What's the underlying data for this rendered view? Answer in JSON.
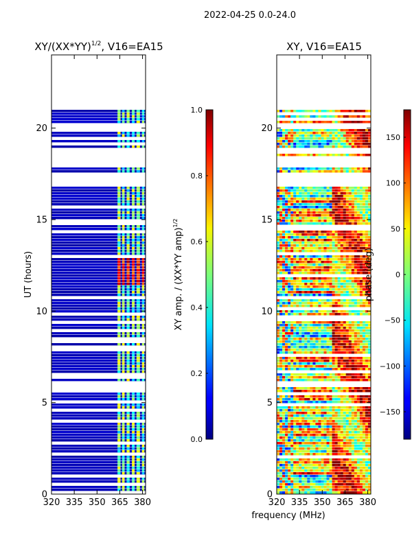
{
  "suptitle": "2022-04-25 0.0-24.0",
  "chart_data": [
    {
      "type": "heatmap",
      "title_main": "XY/(XX*YY)",
      "title_sup": "1/2",
      "title_tail": ", V16=EA15",
      "xlabel": "",
      "ylabel": "UT (hours)",
      "xlim": [
        320,
        382
      ],
      "ylim": [
        0,
        24
      ],
      "xticks": [
        320,
        335,
        350,
        365,
        380
      ],
      "yticks": [
        0,
        5,
        10,
        15,
        20
      ],
      "data_extent_hours": [
        0,
        21
      ],
      "colorbar": {
        "label_main": "XY amp. / (XX*YY amp)",
        "label_sup": "1/2",
        "range": [
          0.0,
          1.0
        ],
        "ticks": [
          "0.0",
          "0.2",
          "0.4",
          "0.6",
          "0.8",
          "1.0"
        ]
      }
    },
    {
      "type": "heatmap",
      "title": "XY, V16=EA15",
      "xlabel": "frequency (MHz)",
      "ylabel": "",
      "xlim": [
        320,
        382
      ],
      "ylim": [
        0,
        24
      ],
      "xticks": [
        320,
        335,
        350,
        365,
        380
      ],
      "yticks": [
        0,
        5,
        10,
        15,
        20
      ],
      "data_extent_hours": [
        0,
        21
      ],
      "colorbar": {
        "label": "phase (deg)",
        "range": [
          -180,
          180
        ],
        "ticks": [
          "150",
          "100",
          "50",
          "0",
          "−50",
          "−100",
          "−150"
        ],
        "tick_values": [
          150,
          100,
          50,
          0,
          -50,
          -100,
          -150
        ]
      }
    }
  ]
}
